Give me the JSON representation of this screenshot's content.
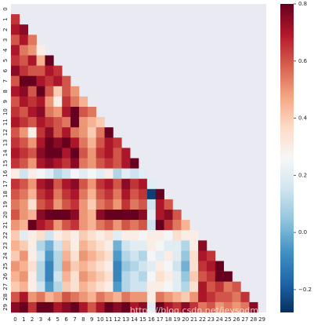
{
  "chart_data": {
    "type": "heatmap",
    "colormap": "RdBu_r",
    "x": [
      "0",
      "1",
      "2",
      "3",
      "4",
      "5",
      "6",
      "7",
      "8",
      "9",
      "10",
      "11",
      "12",
      "13",
      "14",
      "15",
      "16",
      "17",
      "18",
      "19",
      "20",
      "21",
      "22",
      "23",
      "24",
      "25",
      "26",
      "27",
      "28",
      "29"
    ],
    "y": [
      "0",
      "1",
      "2",
      "3",
      "4",
      "5",
      "6",
      "7",
      "8",
      "9",
      "10",
      "11",
      "12",
      "13",
      "14",
      "15",
      "16",
      "17",
      "18",
      "19",
      "20",
      "21",
      "22",
      "23",
      "24",
      "25",
      "26",
      "27",
      "28",
      "29"
    ],
    "values": [
      [],
      [
        0.65
      ],
      [
        0.7,
        0.75
      ],
      [
        0.6,
        0.7,
        0.55
      ],
      [
        0.7,
        0.55,
        0.5,
        0.3
      ],
      [
        0.65,
        0.6,
        0.7,
        0.45,
        0.8
      ],
      [
        0.75,
        0.65,
        0.6,
        0.6,
        0.7,
        0.65
      ],
      [
        0.6,
        0.8,
        0.8,
        0.7,
        0.65,
        0.7,
        0.6
      ],
      [
        0.7,
        0.75,
        0.6,
        0.8,
        0.6,
        0.4,
        0.6,
        0.5
      ],
      [
        0.6,
        0.7,
        0.65,
        0.7,
        0.5,
        0.3,
        0.65,
        0.55,
        0.45
      ],
      [
        0.65,
        0.6,
        0.7,
        0.75,
        0.55,
        0.5,
        0.7,
        0.8,
        0.6,
        0.55
      ],
      [
        0.7,
        0.65,
        0.6,
        0.7,
        0.65,
        0.6,
        0.55,
        0.8,
        0.5,
        0.45,
        0.4
      ],
      [
        0.6,
        0.5,
        0.3,
        0.65,
        0.75,
        0.6,
        0.7,
        0.55,
        0.5,
        0.4,
        0.55,
        0.8
      ],
      [
        0.65,
        0.6,
        0.5,
        0.7,
        0.8,
        0.75,
        0.8,
        0.7,
        0.55,
        0.45,
        0.6,
        0.7,
        0.65
      ],
      [
        0.7,
        0.65,
        0.6,
        0.75,
        0.8,
        0.8,
        0.7,
        0.8,
        0.6,
        0.5,
        0.65,
        0.7,
        0.6,
        0.7
      ],
      [
        0.65,
        0.6,
        0.5,
        0.7,
        0.75,
        0.7,
        0.65,
        0.75,
        0.55,
        0.5,
        0.6,
        0.65,
        0.6,
        0.7,
        0.8
      ],
      [
        0.3,
        0.15,
        0.3,
        0.25,
        0.2,
        0.1,
        0.15,
        0.25,
        0.2,
        0.25,
        0.2,
        0.3,
        0.1,
        0.2,
        0.15,
        0.2
      ],
      [
        0.65,
        0.6,
        0.5,
        0.7,
        0.75,
        0.6,
        0.7,
        0.75,
        0.6,
        0.5,
        0.65,
        0.7,
        0.6,
        0.75,
        0.65,
        0.7,
        0.2
      ],
      [
        0.6,
        0.55,
        0.45,
        0.65,
        0.7,
        0.55,
        0.65,
        0.7,
        0.55,
        0.45,
        0.6,
        0.65,
        0.55,
        0.7,
        0.6,
        0.65,
        -0.25,
        0.8
      ],
      [
        0.55,
        0.5,
        0.35,
        0.6,
        0.65,
        0.5,
        0.6,
        0.65,
        0.5,
        0.4,
        0.55,
        0.6,
        0.5,
        0.65,
        0.55,
        0.6,
        0.15,
        0.7,
        0.6
      ],
      [
        0.6,
        0.5,
        0.45,
        0.75,
        0.8,
        0.8,
        0.8,
        0.75,
        0.5,
        0.45,
        0.75,
        0.8,
        0.8,
        0.8,
        0.8,
        0.75,
        0.2,
        0.7,
        0.75,
        0.6
      ],
      [
        0.5,
        0.45,
        0.8,
        0.7,
        0.65,
        0.5,
        0.6,
        0.65,
        0.5,
        0.45,
        0.55,
        0.6,
        0.5,
        0.6,
        0.55,
        0.6,
        0.15,
        0.8,
        0.65,
        0.55,
        0.45
      ],
      [
        0.4,
        0.2,
        0.3,
        0.35,
        0.15,
        0.3,
        0.35,
        0.3,
        0.4,
        0.35,
        0.3,
        0.35,
        0.2,
        0.3,
        0.3,
        0.25,
        0.3,
        0.3,
        0.25,
        0.35,
        0.3,
        0.3
      ],
      [
        0.45,
        0.4,
        0.3,
        0.1,
        0.0,
        0.15,
        0.4,
        0.3,
        0.45,
        0.4,
        0.35,
        0.3,
        0.0,
        0.15,
        0.2,
        0.2,
        0.3,
        0.25,
        0.2,
        0.2,
        0.1,
        0.3,
        0.75
      ],
      [
        0.4,
        0.5,
        0.3,
        0.15,
        -0.05,
        0.1,
        0.45,
        0.35,
        0.5,
        0.45,
        0.4,
        0.35,
        -0.05,
        0.1,
        0.15,
        0.1,
        0.25,
        0.2,
        0.3,
        0.2,
        0.05,
        0.35,
        0.7,
        0.65
      ],
      [
        0.5,
        0.45,
        0.35,
        0.1,
        -0.1,
        0.1,
        0.5,
        0.4,
        0.45,
        0.4,
        0.35,
        0.3,
        -0.1,
        0.05,
        0.1,
        0.15,
        0.2,
        0.3,
        0.25,
        0.15,
        0.0,
        0.35,
        0.65,
        0.7,
        0.8
      ],
      [
        0.45,
        0.5,
        0.3,
        0.1,
        -0.1,
        0.15,
        0.45,
        0.35,
        0.5,
        0.45,
        0.4,
        0.35,
        -0.1,
        0.1,
        0.15,
        0.1,
        0.25,
        0.35,
        0.3,
        0.2,
        0.05,
        0.4,
        0.6,
        0.65,
        0.8,
        0.8
      ],
      [
        0.4,
        0.45,
        0.3,
        0.15,
        -0.05,
        0.1,
        0.4,
        0.35,
        0.45,
        0.4,
        0.35,
        0.3,
        -0.05,
        0.1,
        0.15,
        0.15,
        0.3,
        0.3,
        0.25,
        0.2,
        0.1,
        0.35,
        0.7,
        0.6,
        0.65,
        0.55,
        0.6
      ],
      [
        0.6,
        0.7,
        0.5,
        0.55,
        0.45,
        0.5,
        0.6,
        0.55,
        0.5,
        0.45,
        0.55,
        0.5,
        0.45,
        0.55,
        0.5,
        0.5,
        0.3,
        0.55,
        0.5,
        0.45,
        0.4,
        0.5,
        0.7,
        0.65,
        0.6,
        0.6,
        0.55,
        0.65
      ],
      [
        0.75,
        0.8,
        0.65,
        0.8,
        0.8,
        0.7,
        0.75,
        0.8,
        0.7,
        0.6,
        0.7,
        0.8,
        0.75,
        0.8,
        0.7,
        0.75,
        0.2,
        0.8,
        0.7,
        0.65,
        0.75,
        0.65,
        0.55,
        0.6,
        0.5,
        0.55,
        0.5,
        0.55,
        0.75
      ]
    ],
    "zlim": [
      -0.28,
      0.8
    ],
    "zticks": [
      {
        "value": -0.2,
        "label": "−0.2"
      },
      {
        "value": 0,
        "label": "0.0"
      },
      0.2,
      0.4,
      0.6,
      0.8
    ],
    "watermark": "https://blog.csdn.net/jeysodm"
  }
}
